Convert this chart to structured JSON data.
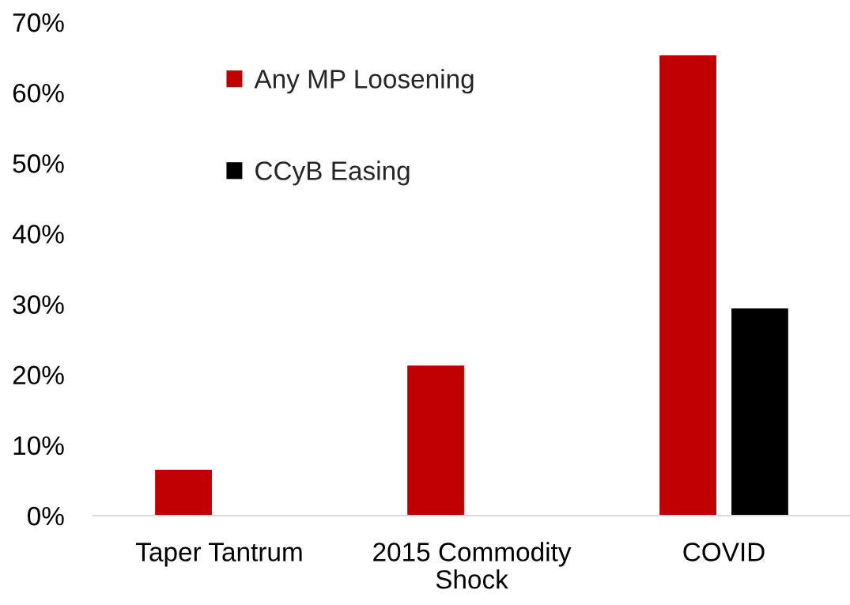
{
  "chart_data": {
    "type": "bar",
    "categories": [
      "Taper Tantrum",
      "2015 Commodity Shock",
      "COVID"
    ],
    "series": [
      {
        "name": "Any MP Loosening",
        "color": "#c00000",
        "values": [
          6.5,
          21.3,
          65.3
        ]
      },
      {
        "name": "CCyB Easing",
        "color": "#000000",
        "values": [
          null,
          null,
          29.4
        ]
      }
    ],
    "ylim": [
      0,
      70
    ],
    "yticks": [
      {
        "value": 0,
        "label": "0%"
      },
      {
        "value": 10,
        "label": "10%"
      },
      {
        "value": 20,
        "label": "20%"
      },
      {
        "value": 30,
        "label": "30%"
      },
      {
        "value": 40,
        "label": "40%"
      },
      {
        "value": 50,
        "label": "50%"
      },
      {
        "value": 60,
        "label": "60%"
      },
      {
        "value": 70,
        "label": "70%"
      }
    ],
    "legend": "top left"
  }
}
